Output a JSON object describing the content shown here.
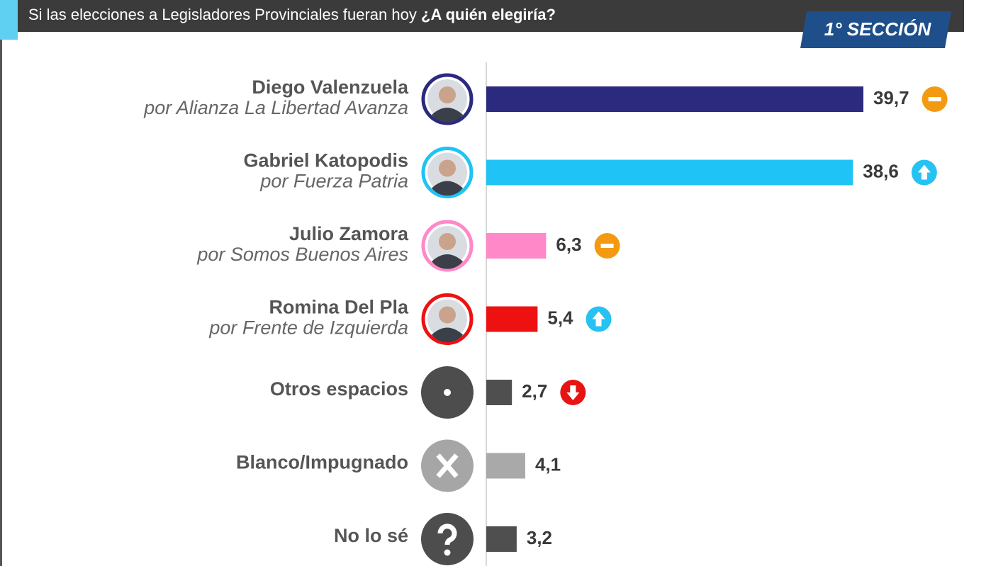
{
  "chart_data": {
    "type": "bar",
    "orientation": "horizontal",
    "title": "Si las elecciones a Legisladores Provinciales fueran hoy",
    "title_emphasis": "¿A quién elegiría?",
    "badge": "1° SECCIÓN",
    "categories": [
      "Diego Valenzuela",
      "Gabriel Katopodis",
      "Julio Zamora",
      "Romina Del Pla",
      "Otros espacios",
      "Blanco/Impugnado",
      "No lo sé"
    ],
    "subtitles": [
      "por Alianza La Libertad Avanza",
      "por Fuerza Patria",
      "por Somos Buenos Aires",
      "por Frente de Izquierda",
      null,
      null,
      null
    ],
    "values": [
      39.7,
      38.6,
      6.3,
      5.4,
      2.7,
      4.1,
      3.2
    ],
    "value_labels": [
      "39,7",
      "38,6",
      "6,3",
      "5,4",
      "2,7",
      "4,1",
      "3,2"
    ],
    "colors": [
      "#2b2a7e",
      "#1fc3f5",
      "#ff88c8",
      "#ee1111",
      "#4f4f4f",
      "#a9a9a9",
      "#4f4f4f"
    ],
    "avatars": [
      "photo",
      "photo",
      "photo",
      "photo",
      "dot",
      "cross",
      "question"
    ],
    "trends": [
      "same",
      "up",
      "same",
      "up",
      "down",
      null,
      null
    ]
  }
}
